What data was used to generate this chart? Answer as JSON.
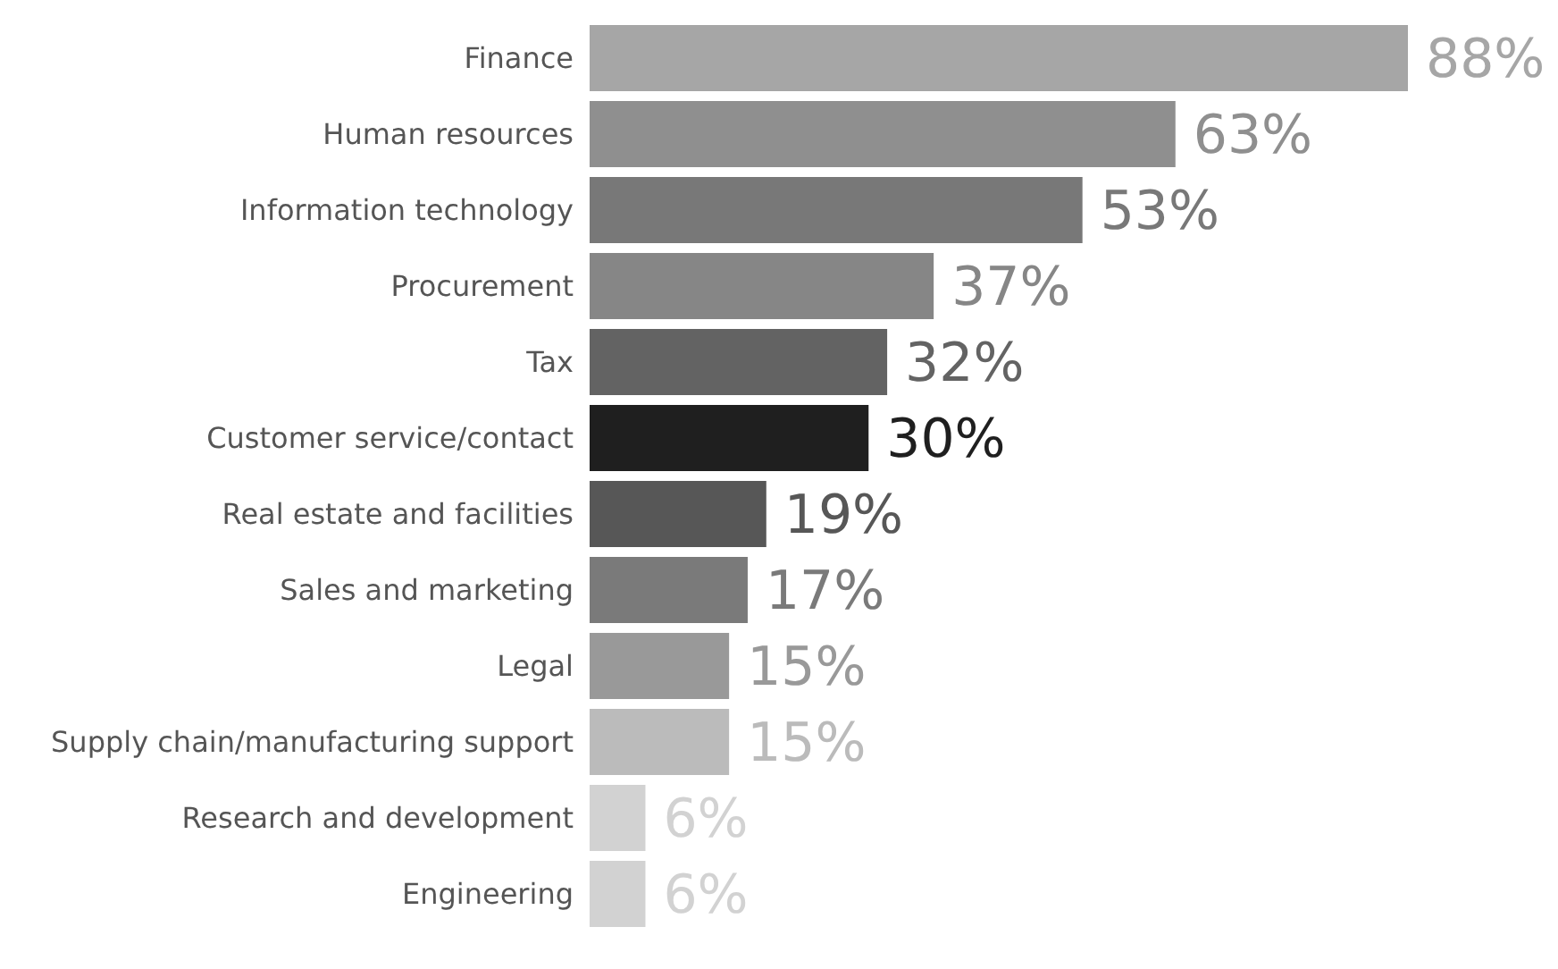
{
  "chart_data": {
    "type": "bar",
    "orientation": "horizontal",
    "categories": [
      "Finance",
      "Human resources",
      "Information technology",
      "Procurement",
      "Tax",
      "Customer service/contact",
      "Real estate and facilities",
      "Sales and marketing",
      "Legal",
      "Supply chain/manufacturing support",
      "Research and development",
      "Engineering"
    ],
    "values": [
      88,
      63,
      53,
      37,
      32,
      30,
      19,
      17,
      15,
      15,
      6,
      6
    ],
    "value_labels": [
      "88%",
      "63%",
      "53%",
      "37%",
      "32%",
      "30%",
      "19%",
      "17%",
      "15%",
      "15%",
      "6%",
      "6%"
    ],
    "colors": [
      "#a6a6a6",
      "#8f8f8f",
      "#787878",
      "#868686",
      "#636363",
      "#1f1f1f",
      "#575757",
      "#7a7a7a",
      "#999999",
      "#bbbbbb",
      "#d2d2d2",
      "#d2d2d2"
    ]
  }
}
